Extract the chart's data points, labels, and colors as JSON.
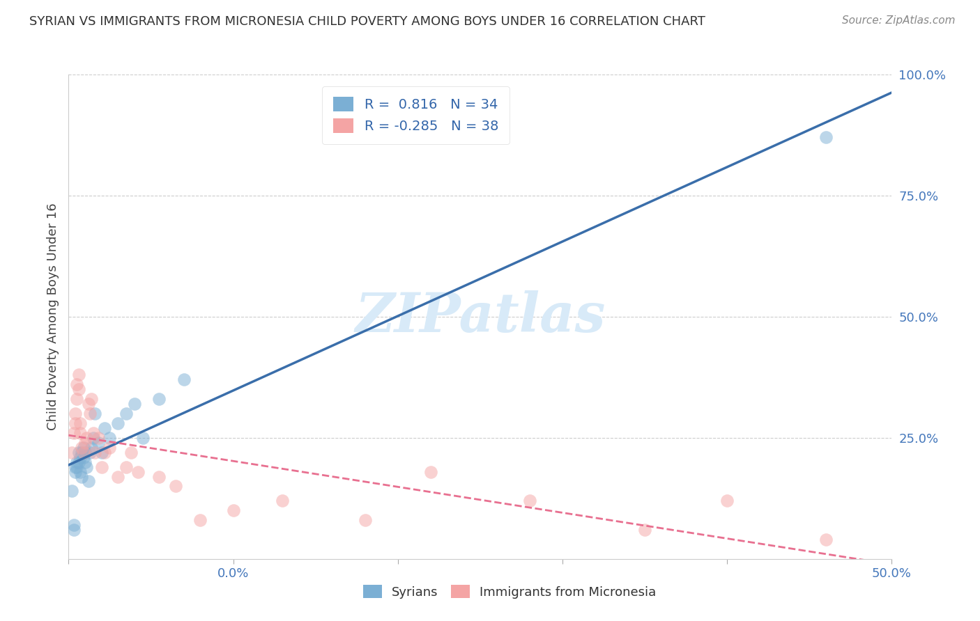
{
  "title": "SYRIAN VS IMMIGRANTS FROM MICRONESIA CHILD POVERTY AMONG BOYS UNDER 16 CORRELATION CHART",
  "source": "Source: ZipAtlas.com",
  "ylabel": "Child Poverty Among Boys Under 16",
  "xlabel": "",
  "legend_label_1": "Syrians",
  "legend_label_2": "Immigrants from Micronesia",
  "R1": 0.816,
  "N1": 34,
  "R2": -0.285,
  "N2": 38,
  "xlim": [
    0.0,
    0.5
  ],
  "ylim": [
    0.0,
    1.0
  ],
  "xticks": [
    0.0,
    0.5
  ],
  "yticks": [
    0.25,
    0.5,
    0.75,
    1.0
  ],
  "xtick_labels": [
    "0.0%",
    "50.0%"
  ],
  "ytick_labels": [
    "25.0%",
    "50.0%",
    "75.0%",
    "100.0%"
  ],
  "xtick_minor": [
    0.1,
    0.2,
    0.3,
    0.4
  ],
  "color_blue": "#7BAFD4",
  "color_pink": "#F4A4A4",
  "color_line_blue": "#3A6EAA",
  "color_line_pink": "#E87090",
  "watermark_text": "ZIPatlas",
  "watermark_color": "#D8EAF8",
  "background_color": "#FFFFFF",
  "syrians_x": [
    0.002,
    0.003,
    0.003,
    0.004,
    0.004,
    0.005,
    0.005,
    0.006,
    0.006,
    0.007,
    0.007,
    0.008,
    0.008,
    0.009,
    0.009,
    0.01,
    0.01,
    0.011,
    0.012,
    0.013,
    0.014,
    0.015,
    0.016,
    0.018,
    0.02,
    0.022,
    0.025,
    0.03,
    0.035,
    0.04,
    0.045,
    0.055,
    0.07,
    0.46
  ],
  "syrians_y": [
    0.14,
    0.06,
    0.07,
    0.18,
    0.19,
    0.19,
    0.2,
    0.22,
    0.2,
    0.21,
    0.18,
    0.22,
    0.17,
    0.23,
    0.21,
    0.22,
    0.2,
    0.19,
    0.16,
    0.22,
    0.23,
    0.25,
    0.3,
    0.24,
    0.22,
    0.27,
    0.25,
    0.28,
    0.3,
    0.32,
    0.25,
    0.33,
    0.37,
    0.87
  ],
  "micronesia_x": [
    0.002,
    0.003,
    0.004,
    0.004,
    0.005,
    0.005,
    0.006,
    0.006,
    0.007,
    0.007,
    0.008,
    0.009,
    0.01,
    0.011,
    0.012,
    0.013,
    0.014,
    0.015,
    0.016,
    0.018,
    0.02,
    0.022,
    0.025,
    0.03,
    0.035,
    0.038,
    0.042,
    0.055,
    0.065,
    0.08,
    0.1,
    0.13,
    0.18,
    0.22,
    0.28,
    0.35,
    0.4,
    0.46
  ],
  "micronesia_y": [
    0.22,
    0.26,
    0.28,
    0.3,
    0.33,
    0.36,
    0.35,
    0.38,
    0.26,
    0.28,
    0.23,
    0.22,
    0.24,
    0.25,
    0.32,
    0.3,
    0.33,
    0.26,
    0.22,
    0.25,
    0.19,
    0.22,
    0.23,
    0.17,
    0.19,
    0.22,
    0.18,
    0.17,
    0.15,
    0.08,
    0.1,
    0.12,
    0.08,
    0.18,
    0.12,
    0.06,
    0.12,
    0.04
  ]
}
